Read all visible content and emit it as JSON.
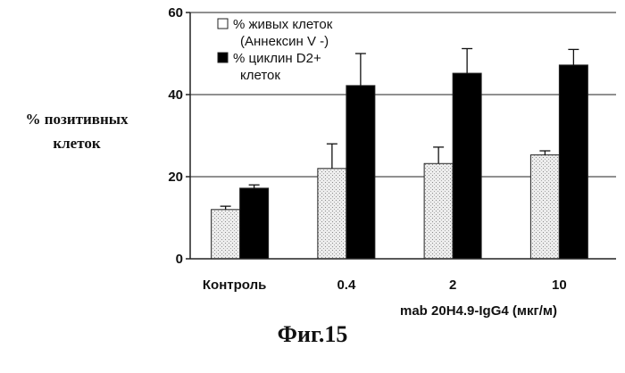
{
  "chart_data": {
    "type": "bar",
    "categories": [
      "Контроль",
      "0.4",
      "2",
      "10"
    ],
    "series": [
      {
        "name_lines": [
          "% живых клеток",
          "(Аннексин V -)"
        ],
        "values": [
          12,
          22,
          23.2,
          25.3
        ],
        "errors": [
          0.8,
          6,
          4,
          1
        ],
        "color": "#e6e6e6"
      },
      {
        "name_lines": [
          "% циклин D2+",
          "клеток"
        ],
        "values": [
          17.2,
          42.2,
          45.2,
          47.2
        ],
        "errors": [
          0.8,
          7.8,
          6,
          3.8
        ],
        "color": "#000000"
      }
    ],
    "ylim": [
      0,
      60
    ],
    "yticks": [
      "0",
      "20",
      "40",
      "60"
    ],
    "ylabel_lines": [
      "% позитивных",
      "клеток"
    ],
    "xlabel": "mab 20H4.9-IgG4 (мкг/м)",
    "grid": true,
    "legend_position": "top-left"
  },
  "caption": "Фиг.15"
}
